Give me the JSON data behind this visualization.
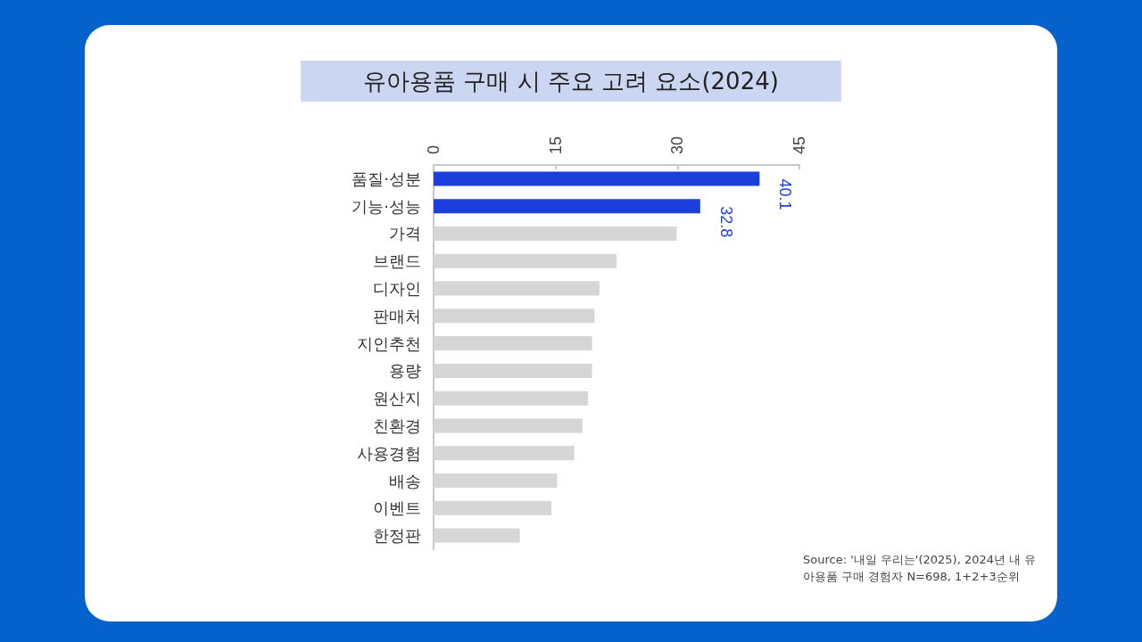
{
  "chart_data": {
    "type": "bar",
    "orientation": "horizontal",
    "title": "유아용품 구매 시 주요 고려 요소(2024)",
    "categories": [
      "품질·성분",
      "기능·성능",
      "가격",
      "브랜드",
      "디자인",
      "판매처",
      "지인추천",
      "용량",
      "원산지",
      "친환경",
      "사용경험",
      "배송",
      "이벤트",
      "한정판"
    ],
    "values": [
      40.1,
      32.8,
      29.9,
      22.5,
      20.4,
      19.8,
      19.5,
      19.5,
      19.0,
      18.3,
      17.3,
      15.2,
      14.5,
      10.6
    ],
    "colors": [
      "#1b3fdb",
      "#1b3fdb",
      "#d6d6d6",
      "#d6d6d6",
      "#d6d6d6",
      "#d6d6d6",
      "#d6d6d6",
      "#d6d6d6",
      "#d6d6d6",
      "#d6d6d6",
      "#d6d6d6",
      "#d6d6d6",
      "#d6d6d6",
      "#d6d6d6"
    ],
    "value_labels": [
      "40.1",
      "32.8",
      null,
      null,
      null,
      null,
      null,
      null,
      null,
      null,
      null,
      null,
      null,
      null
    ],
    "xlim": [
      0,
      45
    ],
    "xticks": [
      0,
      15,
      30,
      45
    ],
    "grid": false,
    "annotations": [
      "Source: '내일 우리는'(2025), 2024년 내 유아용품 구매 경험자 N=698, 1+2+3순위"
    ]
  }
}
